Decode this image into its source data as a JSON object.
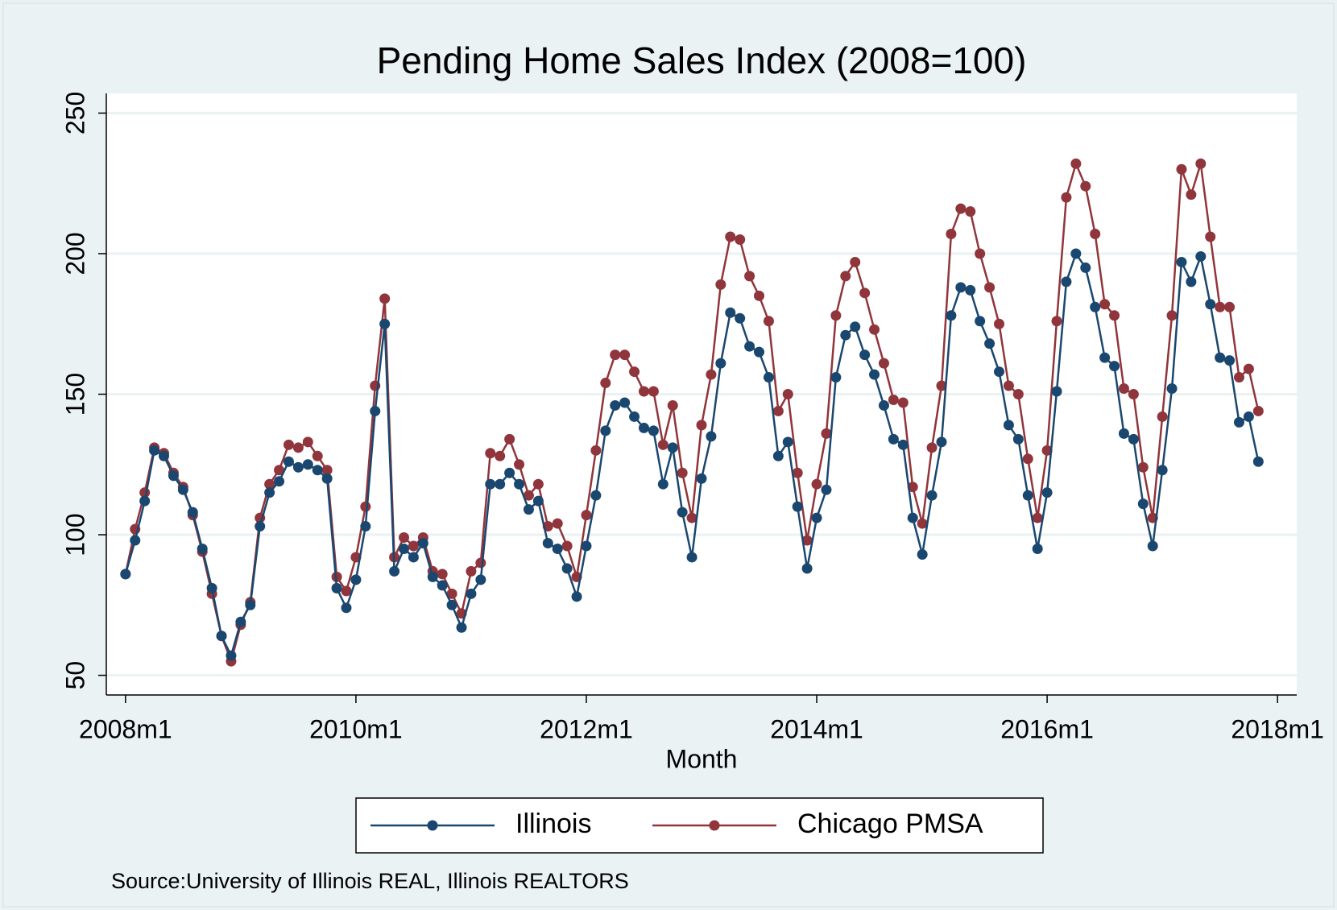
{
  "chart_data": {
    "type": "line",
    "title": "Pending Home Sales Index (2008=100)",
    "x_label": "Month",
    "note": "Source:University of Illinois REAL, Illinois REALTORS",
    "x": [
      "2008m1",
      "2008m2",
      "2008m3",
      "2008m4",
      "2008m5",
      "2008m6",
      "2008m7",
      "2008m8",
      "2008m9",
      "2008m10",
      "2008m11",
      "2008m12",
      "2009m1",
      "2009m2",
      "2009m3",
      "2009m4",
      "2009m5",
      "2009m6",
      "2009m7",
      "2009m8",
      "2009m9",
      "2009m10",
      "2009m11",
      "2009m12",
      "2010m1",
      "2010m2",
      "2010m3",
      "2010m4",
      "2010m5",
      "2010m6",
      "2010m7",
      "2010m8",
      "2010m9",
      "2010m10",
      "2010m11",
      "2010m12",
      "2011m1",
      "2011m2",
      "2011m3",
      "2011m4",
      "2011m5",
      "2011m6",
      "2011m7",
      "2011m8",
      "2011m9",
      "2011m10",
      "2011m11",
      "2011m12",
      "2012m1",
      "2012m2",
      "2012m3",
      "2012m4",
      "2012m5",
      "2012m6",
      "2012m7",
      "2012m8",
      "2012m9",
      "2012m10",
      "2012m11",
      "2012m12",
      "2013m1",
      "2013m2",
      "2013m3",
      "2013m4",
      "2013m5",
      "2013m6",
      "2013m7",
      "2013m8",
      "2013m9",
      "2013m10",
      "2013m11",
      "2013m12",
      "2014m1",
      "2014m2",
      "2014m3",
      "2014m4",
      "2014m5",
      "2014m6",
      "2014m7",
      "2014m8",
      "2014m9",
      "2014m10",
      "2014m11",
      "2014m12",
      "2015m1",
      "2015m2",
      "2015m3",
      "2015m4",
      "2015m5",
      "2015m6",
      "2015m7",
      "2015m8",
      "2015m9",
      "2015m10",
      "2015m11",
      "2015m12",
      "2016m1",
      "2016m2",
      "2016m3",
      "2016m4",
      "2016m5",
      "2016m6",
      "2016m7",
      "2016m8",
      "2016m9",
      "2016m10",
      "2016m11",
      "2016m12",
      "2017m1",
      "2017m2",
      "2017m3",
      "2017m4",
      "2017m5",
      "2017m6",
      "2017m7",
      "2017m8",
      "2017m9",
      "2017m10",
      "2017m11"
    ],
    "series": [
      {
        "name": "Illinois",
        "color": "#1a476f",
        "values": [
          86,
          98,
          112,
          130,
          128,
          121,
          116,
          108,
          95,
          81,
          64,
          57,
          69,
          75,
          103,
          115,
          119,
          126,
          124,
          125,
          123,
          120,
          81,
          74,
          84,
          103,
          144,
          175,
          87,
          95,
          92,
          97,
          85,
          82,
          75,
          67,
          79,
          84,
          118,
          118,
          122,
          118,
          109,
          112,
          97,
          95,
          88,
          78,
          96,
          114,
          137,
          146,
          147,
          142,
          138,
          137,
          118,
          131,
          108,
          92,
          120,
          135,
          161,
          179,
          177,
          167,
          165,
          156,
          128,
          133,
          110,
          88,
          106,
          116,
          156,
          171,
          174,
          164,
          157,
          146,
          134,
          132,
          106,
          93,
          114,
          133,
          178,
          188,
          187,
          176,
          168,
          158,
          139,
          134,
          114,
          95,
          115,
          151,
          190,
          200,
          195,
          181,
          163,
          160,
          136,
          134,
          111,
          96,
          123,
          152,
          197,
          190,
          199,
          182,
          163,
          162,
          140,
          142,
          126
        ]
      },
      {
        "name": "Chicago PMSA",
        "color": "#90353b",
        "values": [
          86,
          102,
          115,
          131,
          129,
          122,
          117,
          107,
          94,
          79,
          64,
          55,
          68,
          76,
          106,
          118,
          123,
          132,
          131,
          133,
          128,
          123,
          85,
          80,
          92,
          110,
          153,
          184,
          92,
          99,
          96,
          99,
          87,
          86,
          79,
          72,
          87,
          90,
          129,
          128,
          134,
          125,
          114,
          118,
          103,
          104,
          96,
          85,
          107,
          130,
          154,
          164,
          164,
          158,
          151,
          151,
          132,
          146,
          122,
          106,
          139,
          157,
          189,
          206,
          205,
          192,
          185,
          176,
          144,
          150,
          122,
          98,
          118,
          136,
          178,
          192,
          197,
          186,
          173,
          161,
          148,
          147,
          117,
          104,
          131,
          153,
          207,
          216,
          215,
          200,
          188,
          175,
          153,
          150,
          127,
          106,
          130,
          176,
          220,
          232,
          224,
          207,
          182,
          178,
          152,
          150,
          124,
          106,
          142,
          178,
          230,
          221,
          232,
          206,
          181,
          181,
          156,
          159,
          144
        ]
      }
    ],
    "xlim": [
      "2007m11",
      "2018m3"
    ],
    "xticks": [
      "2008m1",
      "2010m1",
      "2012m1",
      "2014m1",
      "2016m1",
      "2018m1"
    ],
    "ylim": [
      43,
      257
    ],
    "yticks": [
      50,
      100,
      150,
      200,
      250
    ],
    "grid": true,
    "legend": "bottom"
  }
}
